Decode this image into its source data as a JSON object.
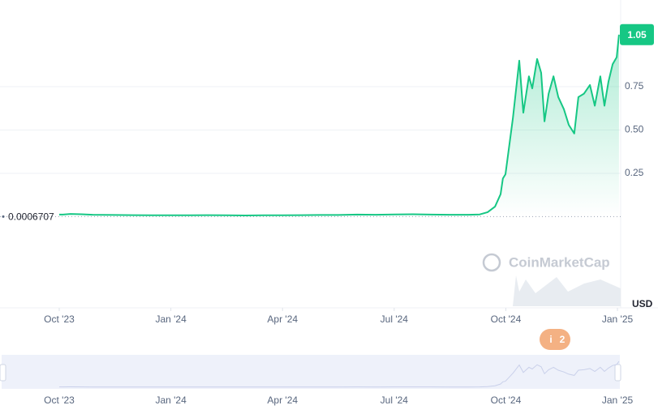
{
  "chart_data": {
    "type": "line",
    "color": "#16c784",
    "currency": "USD",
    "watermark": "CoinMarketCap",
    "current_price": 1.05,
    "reference_price": 0.0006707,
    "events_badge": "2",
    "x": [
      0,
      0.1,
      0.3,
      0.6,
      0.9,
      1.5,
      2,
      2.5,
      3,
      3.5,
      4,
      4.5,
      5,
      5.5,
      6,
      6.5,
      7,
      7.5,
      8,
      8.5,
      9,
      9.5,
      10,
      10.5,
      11,
      11.3,
      11.51,
      11.71,
      11.86,
      11.92,
      11.99,
      12.19,
      12.36,
      12.47,
      12.62,
      12.71,
      12.84,
      12.95,
      13.04,
      13.15,
      13.28,
      13.41,
      13.56,
      13.69,
      13.84,
      13.95,
      14.1,
      14.26,
      14.39,
      14.54,
      14.65,
      14.76,
      14.87,
      14.98,
      15.04
    ],
    "values": [
      0.012,
      0.012,
      0.016,
      0.014,
      0.011,
      0.01,
      0.009,
      0.008,
      0.008,
      0.008,
      0.009,
      0.008,
      0.007,
      0.008,
      0.008,
      0.009,
      0.01,
      0.01,
      0.012,
      0.011,
      0.013,
      0.014,
      0.012,
      0.011,
      0.011,
      0.013,
      0.026,
      0.058,
      0.13,
      0.22,
      0.245,
      0.57,
      0.9,
      0.6,
      0.81,
      0.74,
      0.91,
      0.83,
      0.55,
      0.71,
      0.81,
      0.69,
      0.62,
      0.53,
      0.48,
      0.69,
      0.71,
      0.76,
      0.64,
      0.81,
      0.64,
      0.78,
      0.88,
      0.92,
      1.05
    ],
    "xlim": [
      0,
      15.1
    ],
    "xticks": [
      {
        "value": 0,
        "label": "Oct '23"
      },
      {
        "value": 3,
        "label": "Jan '24"
      },
      {
        "value": 6,
        "label": "Apr '24"
      },
      {
        "value": 9,
        "label": "Jul '24"
      },
      {
        "value": 12,
        "label": "Oct '24"
      },
      {
        "value": 15,
        "label": "Jan '25"
      }
    ],
    "ylim": [
      0,
      1.25
    ],
    "yticks": [
      0.25,
      {
        "value": 0.5,
        "label": "0.50"
      },
      0.75
    ],
    "grid": true
  }
}
